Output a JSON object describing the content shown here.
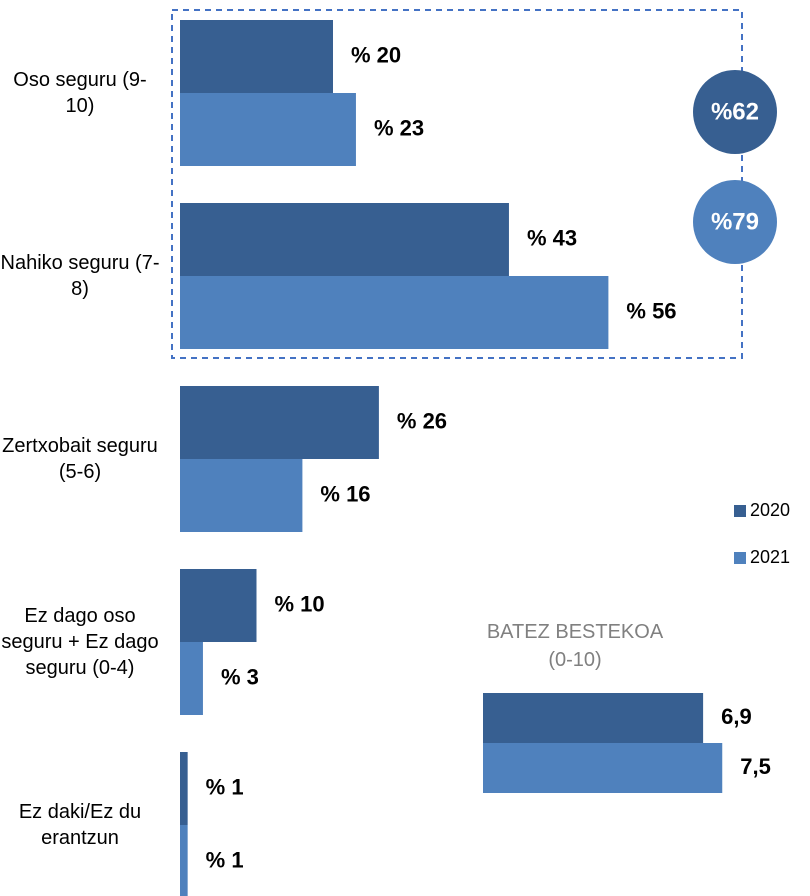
{
  "chart_data": [
    {
      "type": "bar",
      "orientation": "horizontal",
      "categories": [
        "Oso seguru (9-10)",
        "Nahiko seguru (7-8)",
        "Zertxobait seguru (5-6)",
        "Ez dago oso seguru + Ez dago seguru (0-4)",
        "Ez daki/Ez du erantzun"
      ],
      "series": [
        {
          "name": "2020",
          "color": "#375f91",
          "values": [
            20,
            43,
            26,
            10,
            1
          ],
          "value_labels": [
            "% 20",
            "% 43",
            "% 26",
            "% 10",
            "% 1"
          ]
        },
        {
          "name": "2021",
          "color": "#4f81bd",
          "values": [
            23,
            56,
            16,
            3,
            1
          ],
          "value_labels": [
            "% 23",
            "% 56",
            "% 16",
            "% 3",
            "% 1"
          ]
        }
      ],
      "annotations": [
        "%62",
        "%79"
      ],
      "legend": "right"
    },
    {
      "type": "bar",
      "orientation": "horizontal",
      "title": "BATEZ BESTEKOA (0-10)",
      "series": [
        {
          "name": "2020",
          "color": "#375f91",
          "values": [
            6.9
          ],
          "value_labels": [
            "6,9"
          ]
        },
        {
          "name": "2021",
          "color": "#4f81bd",
          "values": [
            7.5
          ],
          "value_labels": [
            "7,5"
          ]
        }
      ]
    }
  ]
}
